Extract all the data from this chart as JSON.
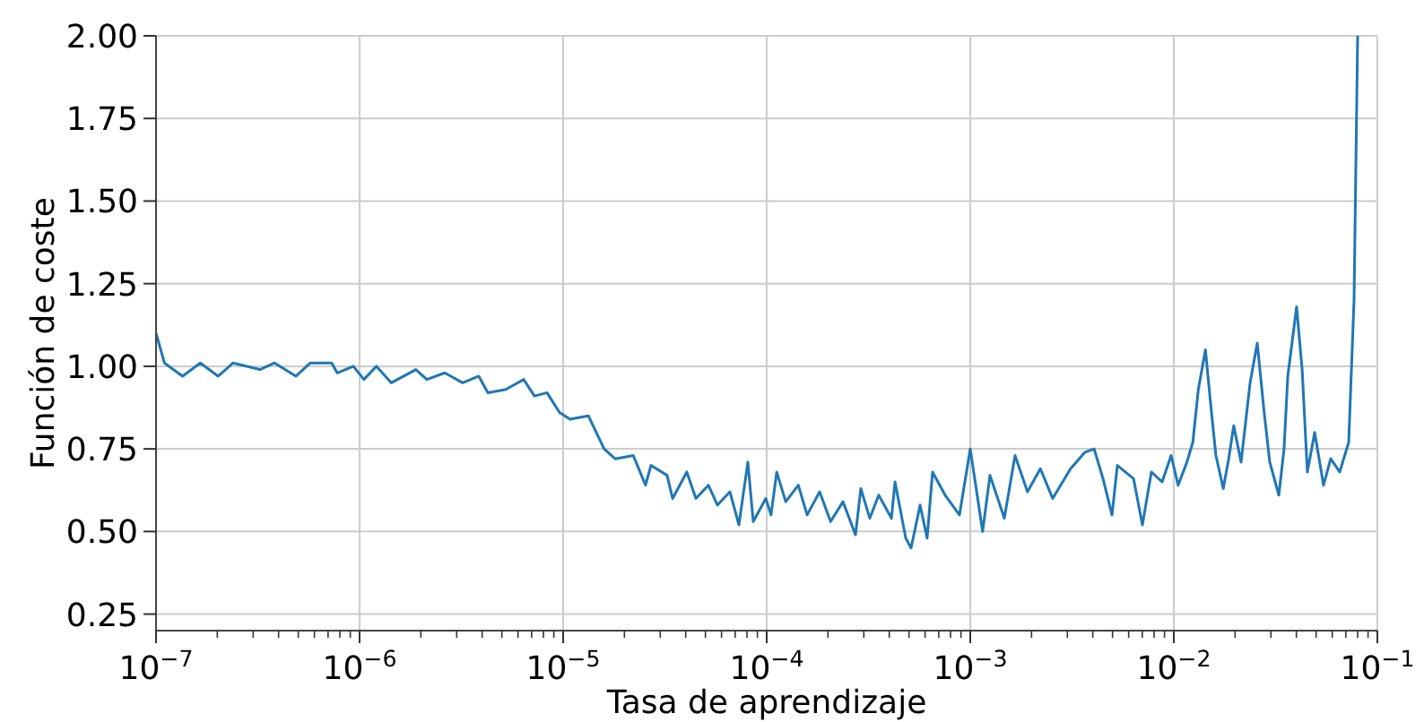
{
  "chart_data": {
    "type": "line",
    "xlabel": "Tasa de aprendizaje",
    "ylabel": "Función de coste",
    "log": "x",
    "grid": true,
    "line_style": "solid",
    "xlim": [
      1e-07,
      0.1
    ],
    "xticks": [
      {
        "value": 1e-07,
        "label": "10$^{−7}$"
      },
      {
        "value": 2e-07,
        "label": null
      },
      {
        "value": 3e-07,
        "label": null
      },
      {
        "value": 4e-07,
        "label": null
      },
      {
        "value": 5e-07,
        "label": null
      },
      {
        "value": 6e-07,
        "label": null
      },
      {
        "value": 7e-07,
        "label": null
      },
      {
        "value": 8e-07,
        "label": null
      },
      {
        "value": 9e-07,
        "label": null
      },
      {
        "value": 1e-06,
        "label": "10$^{−6}$"
      },
      {
        "value": 2e-06,
        "label": null
      },
      {
        "value": 3e-06,
        "label": null
      },
      {
        "value": 4e-06,
        "label": null
      },
      {
        "value": 5e-06,
        "label": null
      },
      {
        "value": 6e-06,
        "label": null
      },
      {
        "value": 7e-06,
        "label": null
      },
      {
        "value": 8e-06,
        "label": null
      },
      {
        "value": 9e-06,
        "label": null
      },
      {
        "value": 1e-05,
        "label": "10$^{−5}$"
      },
      {
        "value": 2e-05,
        "label": null
      },
      {
        "value": 3e-05,
        "label": null
      },
      {
        "value": 4e-05,
        "label": null
      },
      {
        "value": 5e-05,
        "label": null
      },
      {
        "value": 6e-05,
        "label": null
      },
      {
        "value": 7e-05,
        "label": null
      },
      {
        "value": 8e-05,
        "label": null
      },
      {
        "value": 9e-05,
        "label": null
      },
      {
        "value": 0.0001,
        "label": "10$^{−4}$"
      },
      {
        "value": 0.0002,
        "label": null
      },
      {
        "value": 0.0003,
        "label": null
      },
      {
        "value": 0.0004,
        "label": null
      },
      {
        "value": 0.0005,
        "label": null
      },
      {
        "value": 0.0006,
        "label": null
      },
      {
        "value": 0.0007,
        "label": null
      },
      {
        "value": 0.0008,
        "label": null
      },
      {
        "value": 0.0009,
        "label": null
      },
      {
        "value": 0.001,
        "label": "10$^{−3}$"
      },
      {
        "value": 0.002,
        "label": null
      },
      {
        "value": 0.003,
        "label": null
      },
      {
        "value": 0.004,
        "label": null
      },
      {
        "value": 0.005,
        "label": null
      },
      {
        "value": 0.006,
        "label": null
      },
      {
        "value": 0.007,
        "label": null
      },
      {
        "value": 0.008,
        "label": null
      },
      {
        "value": 0.009,
        "label": null
      },
      {
        "value": 0.01,
        "label": "10$^{−2}$"
      },
      {
        "value": 0.02,
        "label": null
      },
      {
        "value": 0.03,
        "label": null
      },
      {
        "value": 0.04,
        "label": null
      },
      {
        "value": 0.05,
        "label": null
      },
      {
        "value": 0.06,
        "label": null
      },
      {
        "value": 0.07,
        "label": null
      },
      {
        "value": 0.08,
        "label": null
      },
      {
        "value": 0.09,
        "label": null
      },
      {
        "value": 0.1,
        "label": "10$^{−1}$"
      }
    ],
    "ylim": [
      0.2,
      2.0
    ],
    "yticks": [
      0.25,
      {
        "value": 0.5,
        "label": "0.50"
      },
      0.75,
      {
        "value": 1,
        "label": "1.00"
      },
      1.25,
      {
        "value": 1.5,
        "label": "1.50"
      },
      1.75,
      {
        "value": 2,
        "label": "2.00"
      }
    ],
    "x": [
      1e-07,
      1.1e-07,
      1.35e-07,
      1.65e-07,
      2.02e-07,
      2.39e-07,
      3.24e-07,
      3.82e-07,
      4.87e-07,
      5.73e-07,
      7.3e-07,
      7.76e-07,
      9.32e-07,
      1.05e-06,
      1.21e-06,
      1.43e-06,
      1.89e-06,
      2.14e-06,
      2.62e-06,
      3.21e-06,
      3.85e-06,
      4.27e-06,
      5.23e-06,
      6.4e-06,
      7.23e-06,
      8.33e-06,
      9.6e-06,
      1.08e-05,
      1.33e-05,
      1.59e-05,
      1.8e-05,
      2.21e-05,
      2.54e-05,
      2.7e-05,
      3.24e-05,
      3.45e-05,
      4.05e-05,
      4.49e-05,
      5.17e-05,
      5.73e-05,
      6.6e-05,
      7.3e-05,
      8.08e-05,
      8.59e-05,
      9.9e-05,
      0.000105,
      0.000112,
      0.000124,
      0.000143,
      0.000158,
      0.000182,
      0.000206,
      0.000237,
      0.000273,
      0.00029,
      0.000321,
      0.000355,
      0.00041,
      0.000427,
      0.000482,
      0.000512,
      0.000567,
      0.000614,
      0.000653,
      0.000753,
      0.000885,
      0.001,
      0.00115,
      0.00125,
      0.00147,
      0.00166,
      0.00191,
      0.00221,
      0.00254,
      0.00311,
      0.00366,
      0.00406,
      0.00449,
      0.00497,
      0.00528,
      0.00634,
      0.00701,
      0.00776,
      0.00876,
      0.0097,
      0.0105,
      0.0116,
      0.0124,
      0.0132,
      0.0143,
      0.0152,
      0.0161,
      0.0175,
      0.0186,
      0.0197,
      0.0214,
      0.0237,
      0.0257,
      0.0278,
      0.0296,
      0.0328,
      0.0348,
      0.0363,
      0.0401,
      0.0427,
      0.0453,
      0.0492,
      0.0544,
      0.059,
      0.0653,
      0.0723,
      0.0768,
      0.08
    ],
    "series": [
      {
        "color": "#1f77b4",
        "values": [
          1.1,
          1.01,
          0.97,
          1.01,
          0.97,
          1.01,
          0.99,
          1.01,
          0.97,
          1.01,
          1.01,
          0.98,
          1.0,
          0.96,
          1.0,
          0.95,
          0.99,
          0.96,
          0.98,
          0.95,
          0.97,
          0.92,
          0.93,
          0.96,
          0.91,
          0.92,
          0.86,
          0.84,
          0.85,
          0.75,
          0.72,
          0.73,
          0.64,
          0.7,
          0.67,
          0.6,
          0.68,
          0.6,
          0.64,
          0.58,
          0.62,
          0.52,
          0.71,
          0.53,
          0.6,
          0.55,
          0.68,
          0.59,
          0.64,
          0.55,
          0.62,
          0.53,
          0.59,
          0.49,
          0.63,
          0.54,
          0.61,
          0.54,
          0.65,
          0.48,
          0.45,
          0.58,
          0.48,
          0.68,
          0.61,
          0.55,
          0.75,
          0.5,
          0.67,
          0.54,
          0.73,
          0.62,
          0.69,
          0.6,
          0.69,
          0.74,
          0.75,
          0.66,
          0.55,
          0.7,
          0.66,
          0.52,
          0.68,
          0.65,
          0.73,
          0.64,
          0.71,
          0.77,
          0.93,
          1.05,
          0.88,
          0.73,
          0.63,
          0.72,
          0.82,
          0.71,
          0.95,
          1.07,
          0.86,
          0.71,
          0.61,
          0.75,
          0.97,
          1.18,
          0.99,
          0.68,
          0.8,
          0.64,
          0.72,
          0.68,
          0.77,
          1.2,
          2.0
        ]
      }
    ]
  }
}
